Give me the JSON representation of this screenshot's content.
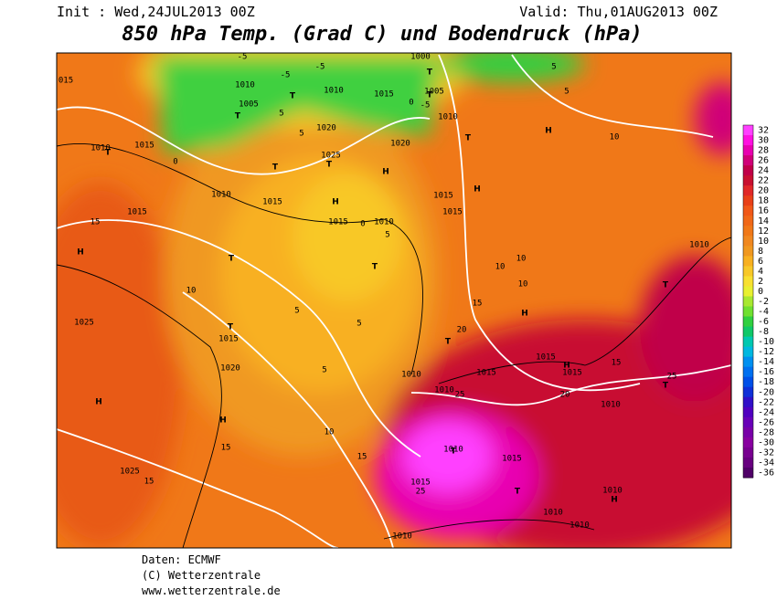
{
  "header": {
    "init": "Init : Wed,24JUL2013 00Z",
    "valid": "Valid: Thu,01AUG2013 00Z",
    "title": "850 hPa Temp. (Grad C) und Bodendruck (hPa)"
  },
  "colorbar": {
    "ticks": [
      32,
      30,
      28,
      26,
      24,
      22,
      20,
      18,
      16,
      14,
      12,
      10,
      8,
      6,
      4,
      2,
      0,
      -2,
      -4,
      -6,
      -8,
      -10,
      -12,
      -14,
      -16,
      -18,
      -20,
      -22,
      -24,
      -26,
      -28,
      -30,
      -32,
      -34,
      -36
    ],
    "colors": [
      "#ff40ff",
      "#ff10e0",
      "#e800b0",
      "#d00078",
      "#c00048",
      "#c81030",
      "#e02828",
      "#e84018",
      "#f05818",
      "#f06818",
      "#f07818",
      "#f08820",
      "#f09820",
      "#f8b020",
      "#f8c828",
      "#f8e030",
      "#e8f030",
      "#a8e830",
      "#70e030",
      "#30d040",
      "#10c868",
      "#00c8b0",
      "#00b8e0",
      "#0090f0",
      "#0070f0",
      "#0050e8",
      "#1030d8",
      "#3010c8",
      "#5000c0",
      "#6800b8",
      "#7800a8",
      "#8800a0",
      "#780090",
      "#680080",
      "#500068"
    ]
  },
  "map": {
    "labels": [
      "015",
      "-5",
      "-5",
      "-5",
      "1000",
      "5",
      "5",
      "1010",
      "1010",
      "1015",
      "1005",
      "-5",
      "0",
      "1010",
      "1005",
      "5",
      "5",
      "1020",
      "1020",
      "1025",
      "1010",
      "1015",
      "0",
      "10",
      "1010",
      "1015",
      "1015",
      "1015",
      "1015",
      "1015",
      "1010",
      "0",
      "5",
      "15",
      "1010",
      "10",
      "10",
      "10",
      "10",
      "15",
      "5",
      "1025",
      "5",
      "20",
      "1015",
      "1020",
      "5",
      "1010",
      "1015",
      "1015",
      "1015",
      "15",
      "25",
      "1010",
      "25",
      "20",
      "1010",
      "10",
      "15",
      "15",
      "1025",
      "15",
      "1010",
      "1015",
      "1015",
      "25",
      "1010",
      "1010",
      "1010",
      "1010",
      "H",
      "H",
      "H",
      "H",
      "H",
      "H",
      "H",
      "H",
      "H",
      "H",
      "T",
      "T",
      "T",
      "T",
      "T",
      "T",
      "T",
      "T",
      "T",
      "T",
      "T",
      "T",
      "T",
      "T",
      "T",
      "T"
    ]
  },
  "footer": {
    "source": "Daten: ECMWF",
    "copyright": "(C) Wetterzentrale",
    "url": "www.wetterzentrale.de"
  }
}
